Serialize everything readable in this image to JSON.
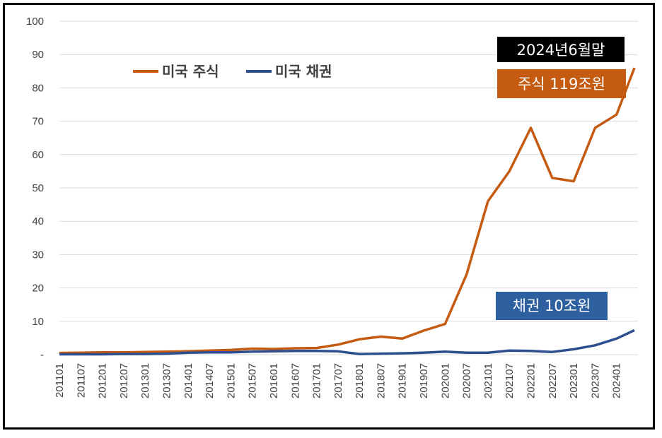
{
  "chart_data": {
    "type": "line",
    "ylim": [
      0,
      100
    ],
    "yticks": [
      "-",
      "10",
      "20",
      "30",
      "40",
      "50",
      "60",
      "70",
      "80",
      "90",
      "100"
    ],
    "xticks": [
      "201101",
      "201107",
      "201201",
      "201207",
      "201301",
      "201307",
      "201401",
      "201407",
      "201501",
      "201507",
      "201601",
      "201607",
      "201701",
      "201707",
      "201801",
      "201807",
      "201901",
      "201907",
      "202001",
      "202007",
      "202101",
      "202107",
      "202201",
      "202207",
      "202301",
      "202307",
      "202401"
    ],
    "grid": true,
    "legend_position": "top-left",
    "series": [
      {
        "name": "미국  주식",
        "color": "#c55a11",
        "x": [
          "201101",
          "201107",
          "201201",
          "201207",
          "201301",
          "201307",
          "201401",
          "201407",
          "201501",
          "201507",
          "201601",
          "201607",
          "201701",
          "201707",
          "201801",
          "201807",
          "201901",
          "201907",
          "202001",
          "202007",
          "202101",
          "202107",
          "202201",
          "202207",
          "202301",
          "202307",
          "202401",
          "202406"
        ],
        "values": [
          0.5,
          0.6,
          0.7,
          0.7,
          0.8,
          0.9,
          1.0,
          1.2,
          1.4,
          1.8,
          1.7,
          1.9,
          2.0,
          3.0,
          4.6,
          5.4,
          4.8,
          7.2,
          9.2,
          24,
          46,
          55,
          68,
          53,
          52,
          68,
          72,
          86
        ]
      },
      {
        "name": "미국  채권",
        "color": "#2e4f8f",
        "x": [
          "201101",
          "201107",
          "201201",
          "201207",
          "201301",
          "201307",
          "201401",
          "201407",
          "201501",
          "201507",
          "201601",
          "201607",
          "201701",
          "201707",
          "201801",
          "201807",
          "201901",
          "201907",
          "202001",
          "202007",
          "202101",
          "202107",
          "202201",
          "202207",
          "202301",
          "202307",
          "202401",
          "202406"
        ],
        "values": [
          0.1,
          0.1,
          0.1,
          0.2,
          0.2,
          0.3,
          0.6,
          0.7,
          0.7,
          0.9,
          1.0,
          1.1,
          1.1,
          1.0,
          0.2,
          0.3,
          0.4,
          0.6,
          0.9,
          0.6,
          0.6,
          1.2,
          1.1,
          0.8,
          1.6,
          2.8,
          4.8,
          7.3
        ]
      }
    ],
    "annotations": {
      "date": "2024년6월말",
      "stock": "주식 119조원",
      "bond": "채권 10조원"
    },
    "colors": {
      "date_box": "#000000",
      "stock_box": "#c55a11",
      "bond_box": "#2e5f9e"
    }
  }
}
